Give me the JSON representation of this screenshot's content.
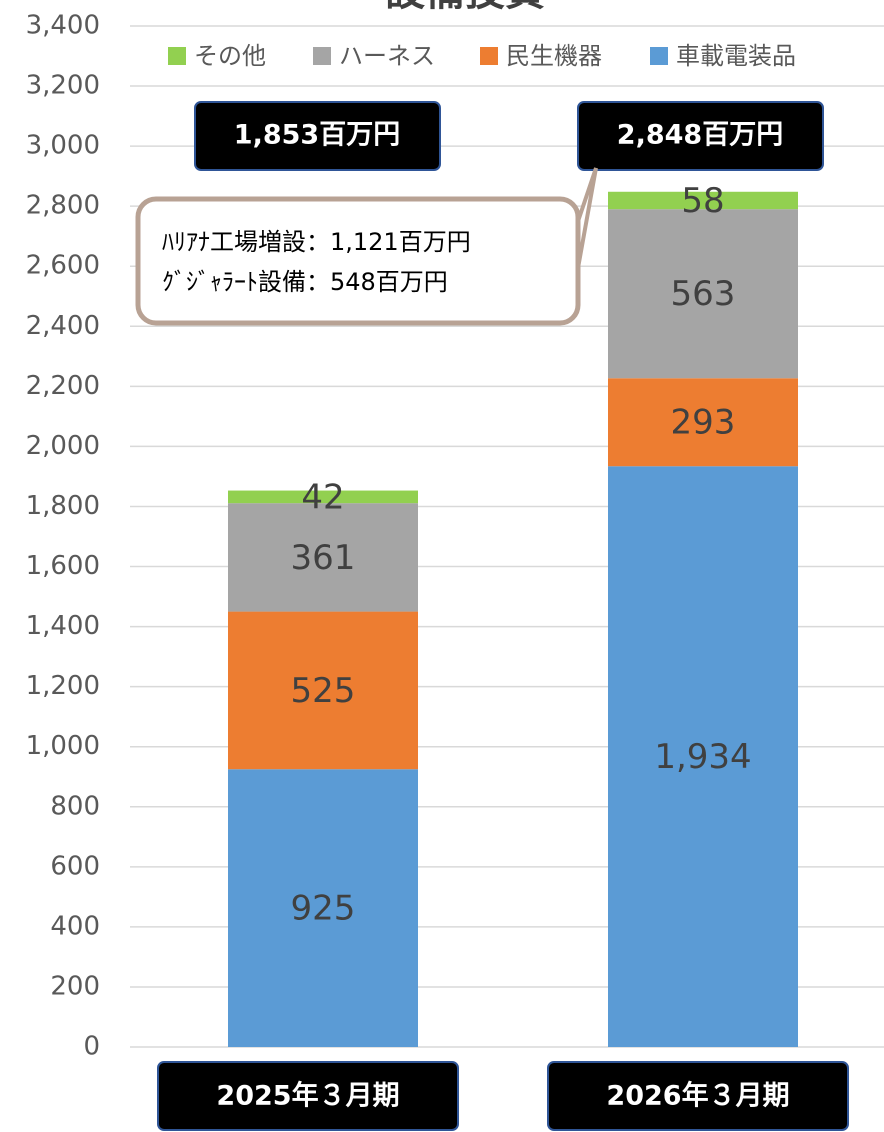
{
  "chart_data": {
    "type": "stacked_bar",
    "title": "設備投資",
    "categories": [
      "2025年３月期",
      "2026年３月期"
    ],
    "series": [
      {
        "name": "車載電装品",
        "color": "#5b9bd5",
        "values": [
          925,
          1934
        ],
        "value_labels": [
          "925",
          "1,934"
        ]
      },
      {
        "name": "民生機器",
        "color": "#ed7d31",
        "values": [
          525,
          293
        ]
      },
      {
        "name": "ハーネス",
        "color": "#a5a5a5",
        "values": [
          361,
          563
        ]
      },
      {
        "name": "その他",
        "color": "#92d050",
        "values": [
          42,
          58
        ]
      }
    ],
    "ylim": [
      0,
      3400
    ],
    "yticks": [
      0,
      200,
      400,
      600,
      800,
      {
        "value": 1000,
        "label": "1,000"
      },
      {
        "value": 1200,
        "label": "1,200"
      },
      {
        "value": 1400,
        "label": "1,400"
      },
      {
        "value": 1600,
        "label": "1,600"
      },
      {
        "value": 1800,
        "label": "1,800"
      },
      {
        "value": 2000,
        "label": "2,000"
      },
      {
        "value": 2200,
        "label": "2,200"
      },
      {
        "value": 2400,
        "label": "2,400"
      },
      {
        "value": 2600,
        "label": "2,600"
      },
      {
        "value": 2800,
        "label": "2,800"
      },
      {
        "value": 3000,
        "label": "3,000"
      },
      {
        "value": 3200,
        "label": "3,200"
      },
      {
        "value": 3400,
        "label": "3,400"
      }
    ],
    "grid": true,
    "legend": "top",
    "annotations": [
      "1,853百万円",
      "2,848百万円",
      "ﾊﾘｱﾅ工場増設：1,121百万円",
      "ｸﾞｼﾞｬﾗｰﾄ設備：548百万円"
    ]
  }
}
